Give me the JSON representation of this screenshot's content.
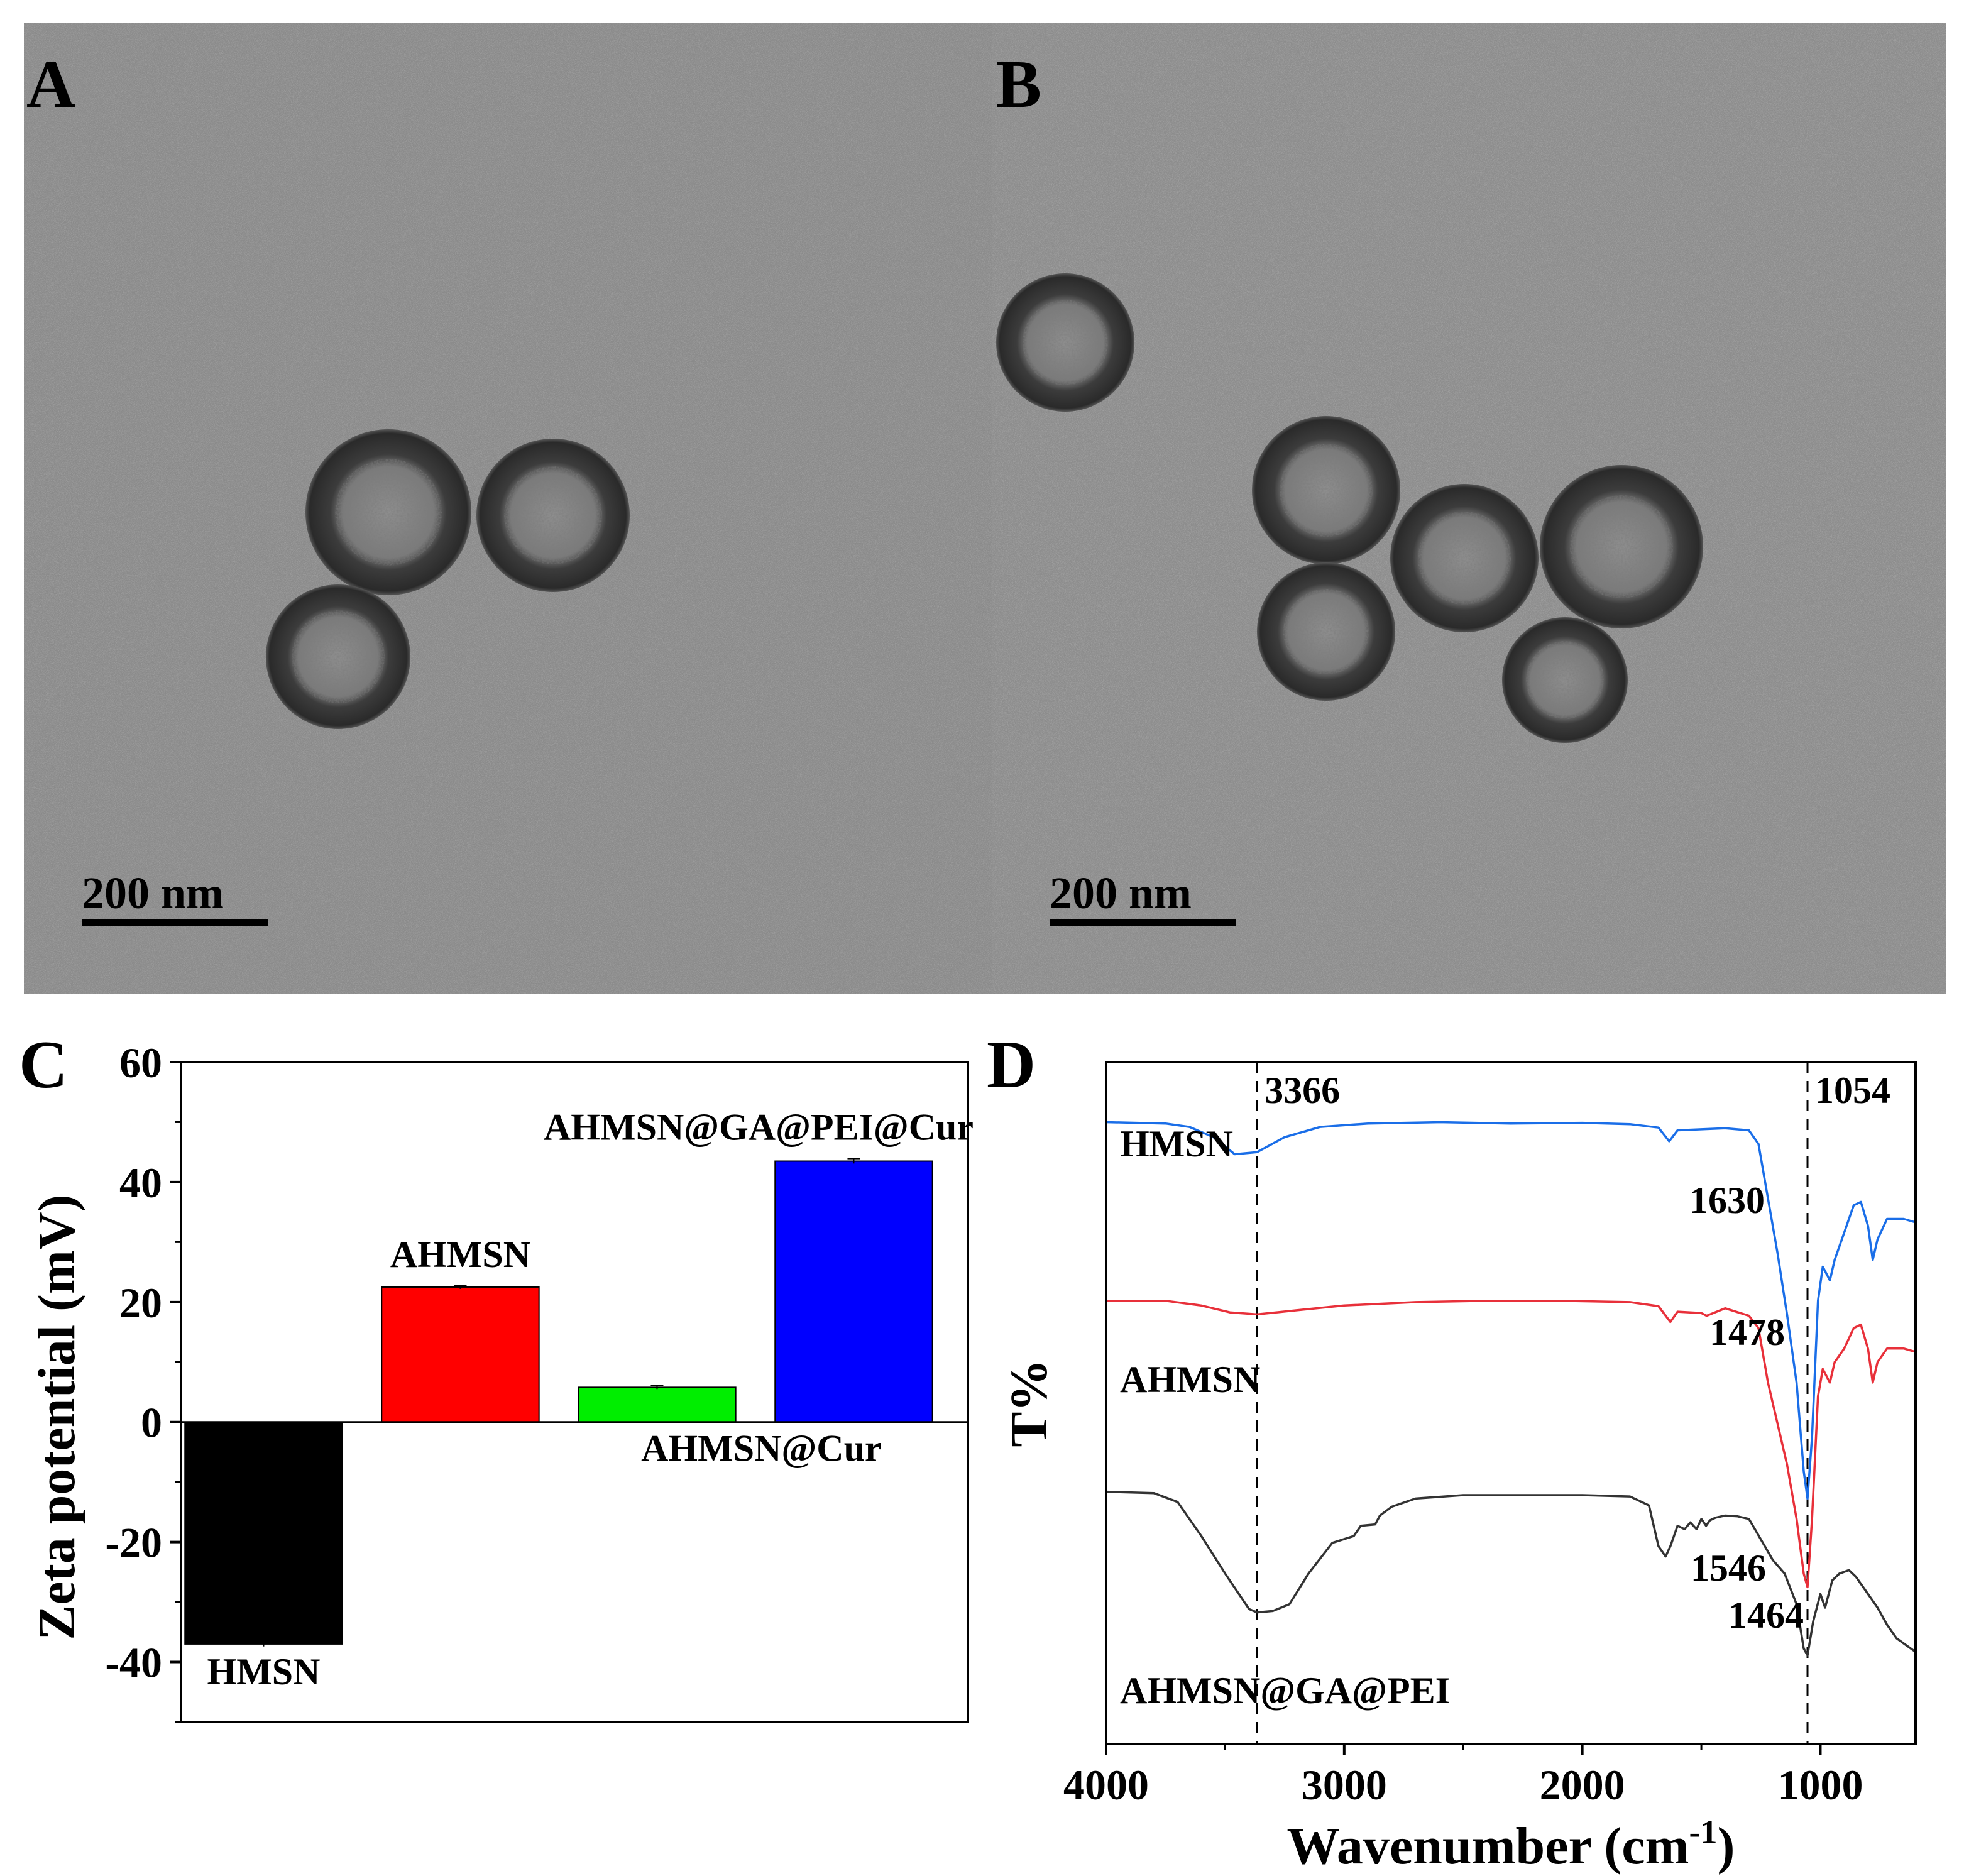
{
  "panels": {
    "A": {
      "letter": "A",
      "scale_bar": "200 nm"
    },
    "B": {
      "letter": "B",
      "scale_bar": "200 nm"
    },
    "C": {
      "letter": "C"
    },
    "D": {
      "letter": "D"
    }
  },
  "chart_data": [
    {
      "panel": "C",
      "type": "bar",
      "categories": [
        "HMSN",
        "AHMSN",
        "AHMSN@Cur",
        "AHMSN@GA@PEI@Cur"
      ],
      "values": [
        -37,
        22.5,
        5.8,
        43.5
      ],
      "errors": [
        0.4,
        0.3,
        0.3,
        0.4
      ],
      "colors": [
        "#000000",
        "#ff0000",
        "#00ee00",
        "#0000ff"
      ],
      "ylabel": "Zeta potential (mV)",
      "ylim": [
        -50,
        60
      ],
      "yticks": [
        -40,
        -20,
        0,
        20,
        40,
        60
      ],
      "ytick_labels": [
        "-40",
        "-20",
        "0",
        "20",
        "40",
        "60"
      ],
      "grid": false
    },
    {
      "panel": "D",
      "type": "line",
      "xlabel_main": "Wavenumber (cm",
      "xlabel_sup": "-1",
      "xlabel_close": ")",
      "ylabel": "T%",
      "xlim": [
        4000,
        600
      ],
      "xticks": [
        4000,
        3000,
        2000,
        1000
      ],
      "xtick_labels": [
        "4000",
        "3000",
        "2000",
        "1000"
      ],
      "reference_lines": [
        3366,
        1054
      ],
      "annotations": [
        "3366",
        "1054",
        "1630",
        "1478",
        "1546",
        "1464"
      ],
      "series": [
        {
          "name": "HMSN",
          "color": "#1a6ee8",
          "x": [
            4000,
            3750,
            3650,
            3550,
            3460,
            3366,
            3250,
            3100,
            2900,
            2600,
            2300,
            2000,
            1800,
            1680,
            1635,
            1600,
            1400,
            1300,
            1260,
            1220,
            1180,
            1140,
            1100,
            1070,
            1054,
            1035,
            1010,
            990,
            960,
            940,
            900,
            860,
            830,
            800,
            780,
            760,
            720,
            650,
            600
          ],
          "y": [
            96.2,
            96.0,
            95.5,
            94.0,
            91.5,
            91.8,
            94.0,
            95.5,
            96.0,
            96.2,
            96.0,
            96.1,
            95.9,
            95.4,
            93.4,
            95.0,
            95.3,
            95.0,
            93.0,
            85.0,
            77.0,
            68.0,
            58.0,
            45.0,
            41.0,
            50.0,
            70.0,
            75.0,
            73.0,
            76.0,
            80.0,
            84.0,
            84.5,
            81.0,
            76.0,
            79.0,
            82.0,
            82.0,
            81.5
          ]
        },
        {
          "name": "AHMSN",
          "color": "#e8303a",
          "x": [
            4000,
            3750,
            3600,
            3480,
            3366,
            3200,
            3000,
            2700,
            2400,
            2100,
            1800,
            1680,
            1630,
            1600,
            1500,
            1478,
            1400,
            1300,
            1260,
            1220,
            1180,
            1140,
            1100,
            1070,
            1054,
            1035,
            1010,
            990,
            960,
            940,
            900,
            860,
            830,
            800,
            780,
            760,
            720,
            650,
            600
          ],
          "y": [
            70.0,
            70.0,
            69.3,
            68.3,
            68.0,
            68.6,
            69.3,
            69.8,
            70.0,
            70.0,
            69.8,
            69.2,
            66.9,
            68.4,
            68.2,
            67.8,
            68.9,
            67.8,
            66.0,
            58.0,
            52.0,
            46.0,
            38.0,
            30.0,
            28.0,
            38.0,
            56.0,
            60.0,
            58.0,
            61.0,
            63.0,
            66.0,
            66.5,
            63.0,
            58.0,
            61.0,
            63.0,
            63.0,
            62.5
          ]
        },
        {
          "name": "AHMSN@GA@PEI",
          "color": "#333333",
          "x": [
            4000,
            3800,
            3700,
            3600,
            3500,
            3400,
            3366,
            3300,
            3230,
            3150,
            3050,
            2960,
            2930,
            2870,
            2850,
            2800,
            2700,
            2500,
            2300,
            2000,
            1800,
            1720,
            1680,
            1650,
            1630,
            1600,
            1570,
            1546,
            1520,
            1500,
            1480,
            1464,
            1440,
            1400,
            1350,
            1300,
            1250,
            1200,
            1150,
            1100,
            1070,
            1054,
            1030,
            1000,
            980,
            950,
            920,
            880,
            850,
            800,
            760,
            720,
            680,
            640,
            600
          ],
          "y": [
            42.0,
            41.8,
            40.5,
            35.5,
            30.0,
            24.8,
            24.3,
            24.5,
            25.5,
            30.0,
            34.5,
            35.5,
            37.0,
            37.2,
            38.5,
            39.8,
            41.0,
            41.5,
            41.5,
            41.5,
            41.3,
            40.0,
            34.0,
            32.5,
            34.0,
            37.0,
            36.5,
            37.5,
            36.5,
            38.0,
            37.0,
            37.8,
            38.2,
            38.5,
            38.4,
            38.0,
            35.0,
            32.0,
            30.0,
            25.5,
            19.0,
            18.0,
            23.0,
            27.0,
            25.0,
            29.0,
            30.0,
            30.5,
            29.5,
            27.0,
            25.0,
            22.5,
            20.5,
            19.5,
            18.5
          ]
        }
      ]
    }
  ]
}
